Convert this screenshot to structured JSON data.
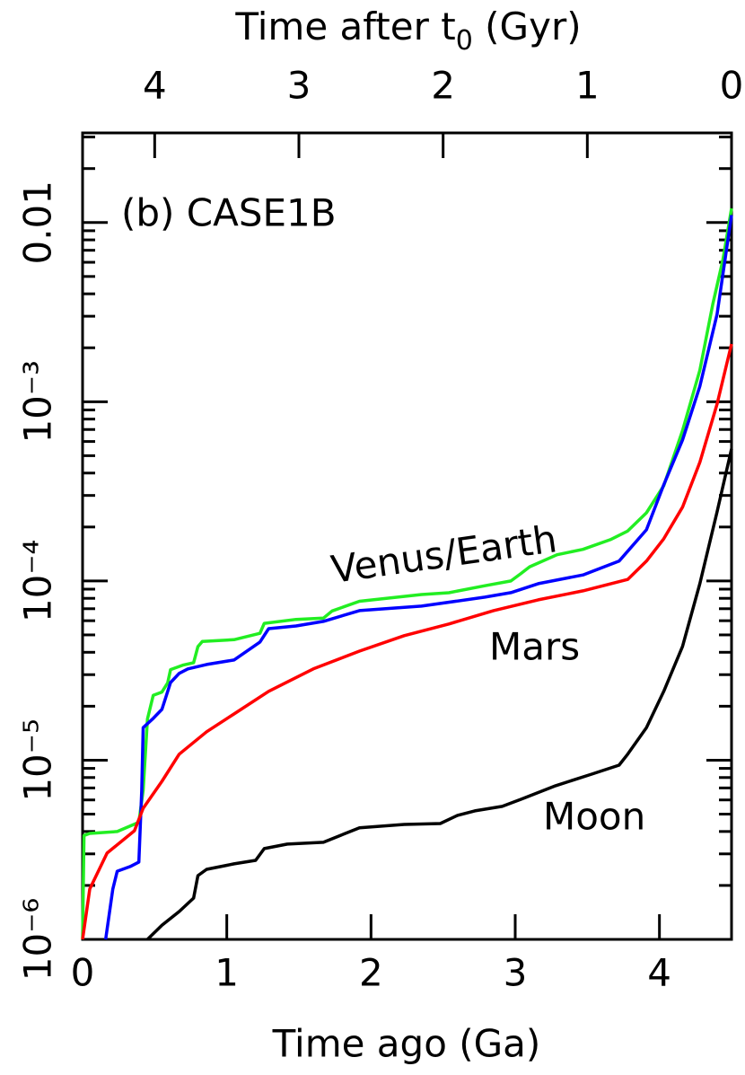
{
  "chart_data": {
    "type": "line",
    "xlabel": "Time ago (Ga)",
    "x2label": [
      "Time after t",
      "0",
      " (Gyr)"
    ],
    "xlim": [
      0,
      4.5
    ],
    "xticks": [
      0,
      1,
      2,
      3,
      4
    ],
    "x2lim": [
      4.5,
      0
    ],
    "x2ticks": [
      4,
      3,
      2,
      1,
      0
    ],
    "ylim": [
      1e-06,
      0.03162
    ],
    "yscale": "log",
    "yticks": [
      {
        "value": 1e-06,
        "label": "10⁻⁶"
      },
      {
        "value": 1e-05,
        "label": "10⁻⁵"
      },
      {
        "value": 0.0001,
        "label": "10⁻⁴"
      },
      {
        "value": 0.001,
        "label": "10⁻³"
      },
      0.01
    ],
    "annotations": [
      "(b) CASE1B",
      "Venus/Earth",
      "Mars",
      "Moon"
    ],
    "series": [
      {
        "color": "#22ee22",
        "x": [
          0,
          0.01,
          0.05,
          0.24,
          0.39,
          0.42,
          0.45,
          0.49,
          0.55,
          0.59,
          0.61,
          0.7,
          0.77,
          0.8,
          0.83,
          1.05,
          1.23,
          1.26,
          1.48,
          1.67,
          1.73,
          1.92,
          2.35,
          2.54,
          2.79,
          2.97,
          3.04,
          3.1,
          3.29,
          3.47,
          3.66,
          3.78,
          3.91,
          4.03,
          4.16,
          4.28,
          4.37,
          4.44,
          4.5
        ],
        "values": [
          1e-06,
          3.8e-06,
          3.9e-06,
          4e-06,
          4.5e-06,
          6.8e-06,
          1.7e-05,
          2.3e-05,
          2.4e-05,
          2.7e-05,
          3.2e-05,
          3.4e-05,
          3.5e-05,
          4.3e-05,
          4.6e-05,
          4.7e-05,
          5.1e-05,
          5.8e-05,
          6.1e-05,
          6.2e-05,
          6.8e-05,
          7.7e-05,
          8.4e-05,
          8.6e-05,
          9.4e-05,
          0.0001,
          0.00011,
          0.00012,
          0.00014,
          0.00015,
          0.00017,
          0.00019,
          0.00024,
          0.00034,
          0.00069,
          0.0015,
          0.0035,
          0.0062,
          0.012
        ]
      },
      {
        "color": "#0000ff",
        "x": [
          0.16,
          0.21,
          0.24,
          0.33,
          0.39,
          0.41,
          0.42,
          0.49,
          0.55,
          0.61,
          0.67,
          0.73,
          0.86,
          1.05,
          1.23,
          1.29,
          1.48,
          1.67,
          1.92,
          2.35,
          2.79,
          2.97,
          3.16,
          3.47,
          3.72,
          3.91,
          4.03,
          4.16,
          4.28,
          4.4,
          4.5
        ],
        "values": [
          1e-06,
          1.91e-06,
          2.4e-06,
          2.55e-06,
          2.7e-06,
          6.8e-06,
          1.52e-05,
          1.71e-05,
          1.92e-05,
          2.71e-05,
          3.05e-05,
          3.23e-05,
          3.42e-05,
          3.62e-05,
          4.56e-05,
          5.42e-05,
          5.61e-05,
          5.95e-05,
          6.83e-05,
          7.24e-05,
          8.12e-05,
          8.61e-05,
          9.66e-05,
          0.000108,
          0.000129,
          0.000193,
          0.000344,
          0.000612,
          0.00122,
          0.00308,
          0.011
        ]
      },
      {
        "color": "#ff0000",
        "x": [
          0,
          0.05,
          0.17,
          0.36,
          0.42,
          0.55,
          0.67,
          0.86,
          1.05,
          1.29,
          1.6,
          1.92,
          2.23,
          2.54,
          2.85,
          3.16,
          3.47,
          3.78,
          3.91,
          4.03,
          4.16,
          4.28,
          4.4,
          4.5
        ],
        "values": [
          1e-06,
          1.91e-06,
          3.03e-06,
          4.04e-06,
          5.39e-06,
          7.62e-06,
          1.08e-05,
          1.44e-05,
          1.81e-05,
          2.42e-05,
          3.23e-05,
          4.06e-05,
          4.95e-05,
          5.75e-05,
          6.83e-05,
          7.85e-05,
          8.81e-05,
          0.000102,
          0.000129,
          0.000172,
          0.000258,
          0.000459,
          0.000971,
          0.0021
        ]
      },
      {
        "color": "#000000",
        "x": [
          0.45,
          0.55,
          0.67,
          0.77,
          0.8,
          0.86,
          1.05,
          1.2,
          1.26,
          1.42,
          1.67,
          1.79,
          1.92,
          2.23,
          2.48,
          2.6,
          2.72,
          2.91,
          3.04,
          3.28,
          3.53,
          3.72,
          3.78,
          3.91,
          4.03,
          4.16,
          4.28,
          4.4,
          4.5
        ],
        "values": [
          1e-06,
          1.2e-06,
          1.43e-06,
          1.7e-06,
          2.27e-06,
          2.46e-06,
          2.64e-06,
          2.76e-06,
          3.21e-06,
          3.4e-06,
          3.48e-06,
          3.81e-06,
          4.19e-06,
          4.38e-06,
          4.43e-06,
          4.92e-06,
          5.21e-06,
          5.52e-06,
          6.05e-06,
          7.2e-06,
          8.36e-06,
          9.38e-06,
          1.08e-05,
          1.52e-05,
          2.42e-05,
          4.31e-05,
          9.66e-05,
          0.000243,
          0.000546
        ]
      }
    ]
  }
}
